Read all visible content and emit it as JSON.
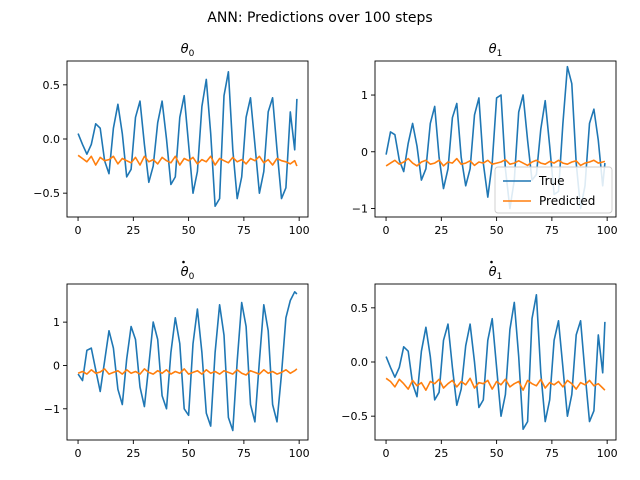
{
  "figure": {
    "suptitle": "ANN: Predictions over 100 steps"
  },
  "chart_data": [
    {
      "type": "line",
      "title": "θ",
      "title_sub": "0",
      "title_dot": false,
      "xlim": [
        -5,
        104
      ],
      "ylim": [
        -0.72,
        0.72
      ],
      "xticks": [
        0,
        25,
        50,
        75,
        100
      ],
      "yticks": [
        -0.5,
        0.0,
        0.5
      ],
      "ytick_labels": [
        "−0.5",
        "0.0",
        "0.5"
      ],
      "x": [
        0,
        2,
        4,
        6,
        8,
        10,
        12,
        14,
        16,
        18,
        20,
        22,
        24,
        26,
        28,
        30,
        32,
        34,
        36,
        38,
        40,
        42,
        44,
        46,
        48,
        50,
        52,
        54,
        56,
        58,
        60,
        62,
        64,
        66,
        68,
        70,
        72,
        74,
        76,
        78,
        80,
        82,
        84,
        86,
        88,
        90,
        92,
        94,
        96,
        98,
        99
      ],
      "series": [
        {
          "name": "True",
          "color": "#1f77b4",
          "values": [
            0.05,
            -0.05,
            -0.14,
            -0.05,
            0.14,
            0.1,
            -0.2,
            -0.32,
            0.1,
            0.32,
            0.05,
            -0.35,
            -0.28,
            0.2,
            0.35,
            -0.05,
            -0.4,
            -0.25,
            0.15,
            0.35,
            0.0,
            -0.42,
            -0.35,
            0.2,
            0.4,
            -0.05,
            -0.5,
            -0.3,
            0.3,
            0.55,
            0.05,
            -0.62,
            -0.55,
            0.4,
            0.62,
            -0.1,
            -0.55,
            -0.35,
            0.2,
            0.38,
            -0.05,
            -0.5,
            -0.3,
            0.25,
            0.38,
            -0.1,
            -0.55,
            -0.45,
            0.25,
            -0.1,
            0.37
          ]
        },
        {
          "name": "Predicted",
          "color": "#ff7f0e",
          "values": [
            -0.15,
            -0.18,
            -0.21,
            -0.16,
            -0.24,
            -0.17,
            -0.2,
            -0.19,
            -0.16,
            -0.23,
            -0.18,
            -0.2,
            -0.22,
            -0.17,
            -0.24,
            -0.16,
            -0.21,
            -0.19,
            -0.23,
            -0.17,
            -0.2,
            -0.22,
            -0.16,
            -0.24,
            -0.18,
            -0.2,
            -0.17,
            -0.23,
            -0.19,
            -0.21,
            -0.16,
            -0.24,
            -0.18,
            -0.2,
            -0.22,
            -0.17,
            -0.21,
            -0.19,
            -0.23,
            -0.18,
            -0.2,
            -0.16,
            -0.22,
            -0.19,
            -0.24,
            -0.18,
            -0.2,
            -0.21,
            -0.23,
            -0.2,
            -0.25
          ]
        }
      ]
    },
    {
      "type": "line",
      "title": "θ",
      "title_sub": "1",
      "title_dot": false,
      "xlim": [
        -5,
        104
      ],
      "ylim": [
        -1.15,
        1.6
      ],
      "xticks": [
        0,
        25,
        50,
        75,
        100
      ],
      "yticks": [
        -1,
        0,
        1
      ],
      "ytick_labels": [
        "−1",
        "0",
        "1"
      ],
      "legend": {
        "placement": "lower right",
        "entries": [
          "True",
          "Predicted"
        ]
      },
      "x": [
        0,
        2,
        4,
        6,
        8,
        10,
        12,
        14,
        16,
        18,
        20,
        22,
        24,
        26,
        28,
        30,
        32,
        34,
        36,
        38,
        40,
        42,
        44,
        46,
        48,
        50,
        52,
        54,
        56,
        58,
        60,
        62,
        64,
        66,
        68,
        70,
        72,
        74,
        76,
        78,
        80,
        82,
        84,
        86,
        88,
        90,
        92,
        94,
        96,
        98,
        99
      ],
      "series": [
        {
          "name": "True",
          "color": "#1f77b4",
          "values": [
            -0.05,
            0.35,
            0.3,
            -0.15,
            -0.35,
            0.15,
            0.5,
            0.1,
            -0.5,
            -0.3,
            0.5,
            0.8,
            -0.1,
            -0.65,
            -0.3,
            0.6,
            0.85,
            -0.1,
            -0.6,
            -0.3,
            0.65,
            0.95,
            -0.2,
            -0.8,
            -0.2,
            0.95,
            1.0,
            -0.3,
            -1.0,
            -0.5,
            0.7,
            1.0,
            0.2,
            -0.5,
            -0.4,
            0.4,
            0.9,
            0.1,
            -0.75,
            -0.7,
            0.5,
            1.5,
            1.2,
            -0.2,
            -1.0,
            -0.6,
            0.5,
            0.75,
            0.2,
            -0.6,
            -0.2
          ]
        },
        {
          "name": "Predicted",
          "color": "#ff7f0e",
          "values": [
            -0.25,
            -0.2,
            -0.15,
            -0.22,
            -0.18,
            -0.12,
            -0.2,
            -0.25,
            -0.18,
            -0.15,
            -0.22,
            -0.2,
            -0.15,
            -0.25,
            -0.18,
            -0.2,
            -0.12,
            -0.22,
            -0.2,
            -0.16,
            -0.24,
            -0.18,
            -0.2,
            -0.15,
            -0.22,
            -0.2,
            -0.18,
            -0.14,
            -0.22,
            -0.2,
            -0.16,
            -0.2,
            -0.24,
            -0.18,
            -0.15,
            -0.2,
            -0.22,
            -0.17,
            -0.2,
            -0.15,
            -0.2,
            -0.22,
            -0.18,
            -0.16,
            -0.24,
            -0.2,
            -0.18,
            -0.15,
            -0.2,
            -0.18,
            -0.17
          ]
        }
      ]
    },
    {
      "type": "line",
      "title": "θ",
      "title_sub": "0",
      "title_dot": true,
      "xlim": [
        -5,
        104
      ],
      "ylim": [
        -1.72,
        1.88
      ],
      "xticks": [
        0,
        25,
        50,
        75,
        100
      ],
      "yticks": [
        -1,
        0,
        1
      ],
      "ytick_labels": [
        "−1",
        "0",
        "1"
      ],
      "x": [
        0,
        2,
        4,
        6,
        8,
        10,
        12,
        14,
        16,
        18,
        20,
        22,
        24,
        26,
        28,
        30,
        32,
        34,
        36,
        38,
        40,
        42,
        44,
        46,
        48,
        50,
        52,
        54,
        56,
        58,
        60,
        62,
        64,
        66,
        68,
        70,
        72,
        74,
        76,
        78,
        80,
        82,
        84,
        86,
        88,
        90,
        92,
        94,
        96,
        98,
        99
      ],
      "series": [
        {
          "name": "True",
          "color": "#1f77b4",
          "values": [
            -0.2,
            -0.35,
            0.35,
            0.4,
            -0.1,
            -0.6,
            0.1,
            0.8,
            0.4,
            -0.55,
            -0.9,
            0.15,
            0.9,
            0.6,
            -0.5,
            -0.95,
            0.0,
            1.0,
            0.6,
            -0.7,
            -1.0,
            0.3,
            1.1,
            0.5,
            -1.0,
            -1.15,
            0.5,
            1.3,
            0.3,
            -1.1,
            -1.4,
            0.3,
            1.4,
            0.7,
            -1.2,
            -1.5,
            0.1,
            1.45,
            0.9,
            -0.9,
            -1.3,
            0.1,
            1.4,
            0.8,
            -0.9,
            -1.3,
            -0.2,
            1.1,
            1.5,
            1.7,
            1.65
          ]
        },
        {
          "name": "Predicted",
          "color": "#ff7f0e",
          "values": [
            -0.18,
            -0.14,
            -0.2,
            -0.1,
            -0.18,
            -0.15,
            -0.08,
            -0.2,
            -0.16,
            -0.12,
            -0.2,
            -0.1,
            -0.18,
            -0.14,
            -0.2,
            -0.08,
            -0.16,
            -0.2,
            -0.12,
            -0.18,
            -0.1,
            -0.2,
            -0.14,
            -0.18,
            -0.08,
            -0.2,
            -0.16,
            -0.12,
            -0.2,
            -0.1,
            -0.18,
            -0.14,
            -0.2,
            -0.12,
            -0.16,
            -0.2,
            -0.1,
            -0.18,
            -0.22,
            -0.12,
            -0.16,
            -0.2,
            -0.1,
            -0.18,
            -0.14,
            -0.2,
            -0.16,
            -0.1,
            -0.18,
            -0.12,
            -0.08
          ]
        }
      ]
    },
    {
      "type": "line",
      "title": "θ",
      "title_sub": "1",
      "title_dot": true,
      "xlim": [
        -5,
        104
      ],
      "ylim": [
        -0.72,
        0.72
      ],
      "xticks": [
        0,
        25,
        50,
        75,
        100
      ],
      "yticks": [
        -0.5,
        0.0,
        0.5
      ],
      "ytick_labels": [
        "−0.5",
        "0.0",
        "0.5"
      ],
      "x": [
        0,
        2,
        4,
        6,
        8,
        10,
        12,
        14,
        16,
        18,
        20,
        22,
        24,
        26,
        28,
        30,
        32,
        34,
        36,
        38,
        40,
        42,
        44,
        46,
        48,
        50,
        52,
        54,
        56,
        58,
        60,
        62,
        64,
        66,
        68,
        70,
        72,
        74,
        76,
        78,
        80,
        82,
        84,
        86,
        88,
        90,
        92,
        94,
        96,
        98,
        99
      ],
      "series": [
        {
          "name": "True",
          "color": "#1f77b4",
          "values": [
            0.05,
            -0.05,
            -0.14,
            -0.05,
            0.14,
            0.1,
            -0.2,
            -0.32,
            0.1,
            0.32,
            0.05,
            -0.35,
            -0.28,
            0.2,
            0.35,
            -0.05,
            -0.4,
            -0.25,
            0.15,
            0.35,
            0.0,
            -0.42,
            -0.35,
            0.2,
            0.4,
            -0.05,
            -0.5,
            -0.3,
            0.3,
            0.55,
            0.05,
            -0.62,
            -0.55,
            0.4,
            0.62,
            -0.1,
            -0.55,
            -0.35,
            0.2,
            0.38,
            -0.05,
            -0.5,
            -0.3,
            0.25,
            0.38,
            -0.1,
            -0.55,
            -0.45,
            0.25,
            -0.1,
            0.37
          ]
        },
        {
          "name": "Predicted",
          "color": "#ff7f0e",
          "values": [
            -0.15,
            -0.18,
            -0.23,
            -0.16,
            -0.2,
            -0.25,
            -0.17,
            -0.22,
            -0.19,
            -0.26,
            -0.18,
            -0.2,
            -0.16,
            -0.24,
            -0.2,
            -0.17,
            -0.23,
            -0.18,
            -0.21,
            -0.15,
            -0.24,
            -0.19,
            -0.2,
            -0.17,
            -0.25,
            -0.18,
            -0.21,
            -0.16,
            -0.23,
            -0.2,
            -0.18,
            -0.26,
            -0.17,
            -0.2,
            -0.22,
            -0.16,
            -0.24,
            -0.19,
            -0.21,
            -0.18,
            -0.23,
            -0.17,
            -0.2,
            -0.25,
            -0.19,
            -0.21,
            -0.17,
            -0.22,
            -0.2,
            -0.24,
            -0.26
          ]
        }
      ]
    }
  ]
}
